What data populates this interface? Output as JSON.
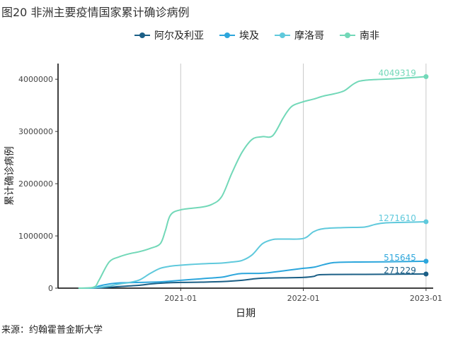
{
  "title": "图20 非洲主要疫情国家累计确诊病例",
  "source": "来源：约翰霍普金斯大学",
  "chart_data": {
    "type": "line",
    "xlabel": "日期",
    "ylabel": "累计确诊病例",
    "x_ticks": [
      "2021-01",
      "2022-01",
      "2023-01"
    ],
    "y_ticks": [
      "0",
      "1000000",
      "2000000",
      "3000000",
      "4000000"
    ],
    "ylim": [
      0,
      4300000
    ],
    "xlim_months": [
      0,
      36.7
    ],
    "grid": "vertical major lines",
    "legend_position": "top",
    "series": [
      {
        "name": "阿尔及利亚",
        "color": "#1b5f86",
        "final_label": "271229",
        "points": [
          [
            2.0,
            0
          ],
          [
            3.5,
            2000
          ],
          [
            5,
            15000
          ],
          [
            6,
            30000
          ],
          [
            8,
            55000
          ],
          [
            9,
            80000
          ],
          [
            10,
            95000
          ],
          [
            11,
            105000
          ],
          [
            12,
            110000
          ],
          [
            14,
            115000
          ],
          [
            16,
            125000
          ],
          [
            18,
            150000
          ],
          [
            19,
            175000
          ],
          [
            20,
            190000
          ],
          [
            22,
            198000
          ],
          [
            24,
            205000
          ],
          [
            25,
            225000
          ],
          [
            25.5,
            255000
          ],
          [
            27,
            262000
          ],
          [
            30,
            264000
          ],
          [
            33,
            267000
          ],
          [
            36,
            271229
          ]
        ]
      },
      {
        "name": "埃及",
        "color": "#2ca6dc",
        "final_label": "515645",
        "points": [
          [
            2.0,
            0
          ],
          [
            3.5,
            5000
          ],
          [
            4,
            40000
          ],
          [
            5,
            80000
          ],
          [
            6,
            100000
          ],
          [
            8,
            110000
          ],
          [
            10,
            120000
          ],
          [
            12,
            150000
          ],
          [
            14,
            180000
          ],
          [
            16,
            210000
          ],
          [
            17,
            250000
          ],
          [
            18,
            280000
          ],
          [
            20,
            285000
          ],
          [
            22,
            330000
          ],
          [
            24,
            380000
          ],
          [
            25,
            400000
          ],
          [
            26,
            450000
          ],
          [
            27,
            490000
          ],
          [
            29,
            500000
          ],
          [
            32,
            505000
          ],
          [
            36,
            515645
          ]
        ]
      },
      {
        "name": "摩洛哥",
        "color": "#5fc9dc",
        "final_label": "1271610",
        "points": [
          [
            2.0,
            0
          ],
          [
            3.5,
            5000
          ],
          [
            5,
            40000
          ],
          [
            6,
            80000
          ],
          [
            7,
            110000
          ],
          [
            8,
            160000
          ],
          [
            9,
            280000
          ],
          [
            10,
            380000
          ],
          [
            11,
            420000
          ],
          [
            12,
            440000
          ],
          [
            14,
            465000
          ],
          [
            16,
            480000
          ],
          [
            17,
            500000
          ],
          [
            18,
            530000
          ],
          [
            19,
            640000
          ],
          [
            20,
            850000
          ],
          [
            21,
            930000
          ],
          [
            22,
            940000
          ],
          [
            24,
            950000
          ],
          [
            25,
            1080000
          ],
          [
            26,
            1140000
          ],
          [
            28,
            1160000
          ],
          [
            30,
            1170000
          ],
          [
            31,
            1220000
          ],
          [
            32,
            1250000
          ],
          [
            34,
            1260000
          ],
          [
            36,
            1271610
          ]
        ]
      },
      {
        "name": "南非",
        "color": "#72d8b8",
        "final_label": "4049319",
        "points": [
          [
            2.0,
            0
          ],
          [
            3.5,
            20000
          ],
          [
            4,
            150000
          ],
          [
            5,
            500000
          ],
          [
            6,
            600000
          ],
          [
            7,
            660000
          ],
          [
            8,
            700000
          ],
          [
            9,
            760000
          ],
          [
            10,
            850000
          ],
          [
            10.5,
            1100000
          ],
          [
            11,
            1400000
          ],
          [
            12,
            1500000
          ],
          [
            14,
            1550000
          ],
          [
            15,
            1600000
          ],
          [
            16,
            1750000
          ],
          [
            17,
            2200000
          ],
          [
            18,
            2600000
          ],
          [
            19,
            2850000
          ],
          [
            20,
            2900000
          ],
          [
            21,
            2920000
          ],
          [
            22,
            3250000
          ],
          [
            22.5,
            3400000
          ],
          [
            23,
            3500000
          ],
          [
            24,
            3570000
          ],
          [
            25,
            3620000
          ],
          [
            26,
            3680000
          ],
          [
            27,
            3720000
          ],
          [
            28,
            3780000
          ],
          [
            29,
            3920000
          ],
          [
            30,
            3980000
          ],
          [
            33,
            4010000
          ],
          [
            36,
            4049319
          ]
        ]
      }
    ]
  }
}
